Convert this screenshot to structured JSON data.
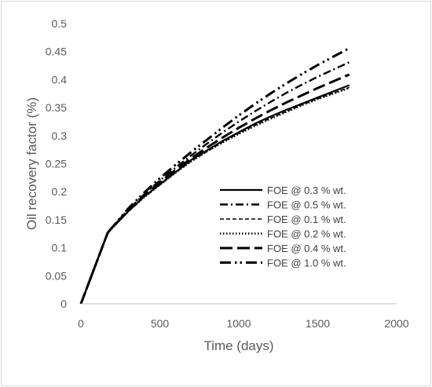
{
  "chart_data": {
    "type": "line",
    "title": "",
    "xlabel": "Time (days)",
    "ylabel": "Oil recovery factor (%)",
    "xlim": [
      0,
      2000
    ],
    "ylim": [
      0,
      0.5
    ],
    "x_ticks": [
      0,
      500,
      1000,
      1500,
      2000
    ],
    "y_ticks": [
      0,
      0.05,
      0.1,
      0.15,
      0.2,
      0.25,
      0.3,
      0.35,
      0.4,
      0.45,
      0.5
    ],
    "grid": false,
    "legend_position": "right-center",
    "series": [
      {
        "name": "FOE @ 0.3 % wt.",
        "style": "solid",
        "x": [
          0,
          170,
          300,
          400,
          500,
          600,
          700,
          800,
          900,
          1000,
          1100,
          1200,
          1300,
          1400,
          1500,
          1600,
          1700
        ],
        "y": [
          0,
          0.127,
          0.165,
          0.191,
          0.213,
          0.235,
          0.257,
          0.274,
          0.291,
          0.306,
          0.321,
          0.334,
          0.346,
          0.357,
          0.368,
          0.379,
          0.39
        ]
      },
      {
        "name": "FOE @ 0.5 % wt.",
        "style": "dashdot",
        "x": [
          0,
          170,
          300,
          400,
          500,
          600,
          700,
          800,
          900,
          1000,
          1100,
          1200,
          1300,
          1400,
          1500,
          1600,
          1700
        ],
        "y": [
          0,
          0.127,
          0.168,
          0.195,
          0.22,
          0.243,
          0.265,
          0.286,
          0.306,
          0.325,
          0.343,
          0.36,
          0.376,
          0.391,
          0.405,
          0.418,
          0.431
        ]
      },
      {
        "name": "FOE @ 0.1 % wt.",
        "style": "dashed",
        "x": [
          0,
          170,
          300,
          400,
          500,
          600,
          700,
          800,
          900,
          1000,
          1100,
          1200,
          1300,
          1400,
          1500,
          1600,
          1700
        ],
        "y": [
          0,
          0.127,
          0.164,
          0.19,
          0.212,
          0.234,
          0.255,
          0.272,
          0.289,
          0.304,
          0.318,
          0.331,
          0.343,
          0.355,
          0.366,
          0.376,
          0.386
        ]
      },
      {
        "name": "FOE @ 0.2 % wt.",
        "style": "dotted",
        "x": [
          0,
          170,
          300,
          400,
          500,
          600,
          700,
          800,
          900,
          1000,
          1100,
          1200,
          1300,
          1400,
          1500,
          1600,
          1700
        ],
        "y": [
          0,
          0.127,
          0.165,
          0.19,
          0.212,
          0.234,
          0.254,
          0.272,
          0.288,
          0.303,
          0.317,
          0.33,
          0.342,
          0.354,
          0.365,
          0.375,
          0.385
        ]
      },
      {
        "name": "FOE @ 0.4 % wt.",
        "style": "longdash",
        "x": [
          0,
          170,
          300,
          400,
          500,
          600,
          700,
          800,
          900,
          1000,
          1100,
          1200,
          1300,
          1400,
          1500,
          1600,
          1700
        ],
        "y": [
          0,
          0.127,
          0.167,
          0.193,
          0.217,
          0.239,
          0.26,
          0.279,
          0.297,
          0.314,
          0.33,
          0.345,
          0.359,
          0.372,
          0.385,
          0.397,
          0.409
        ]
      },
      {
        "name": "FOE @ 1.0 % wt.",
        "style": "longdashdotdot",
        "x": [
          0,
          170,
          300,
          400,
          500,
          600,
          700,
          800,
          900,
          1000,
          1100,
          1200,
          1300,
          1400,
          1500,
          1600,
          1700
        ],
        "y": [
          0,
          0.127,
          0.17,
          0.198,
          0.224,
          0.248,
          0.271,
          0.293,
          0.315,
          0.336,
          0.356,
          0.375,
          0.393,
          0.41,
          0.426,
          0.441,
          0.456
        ]
      }
    ]
  }
}
